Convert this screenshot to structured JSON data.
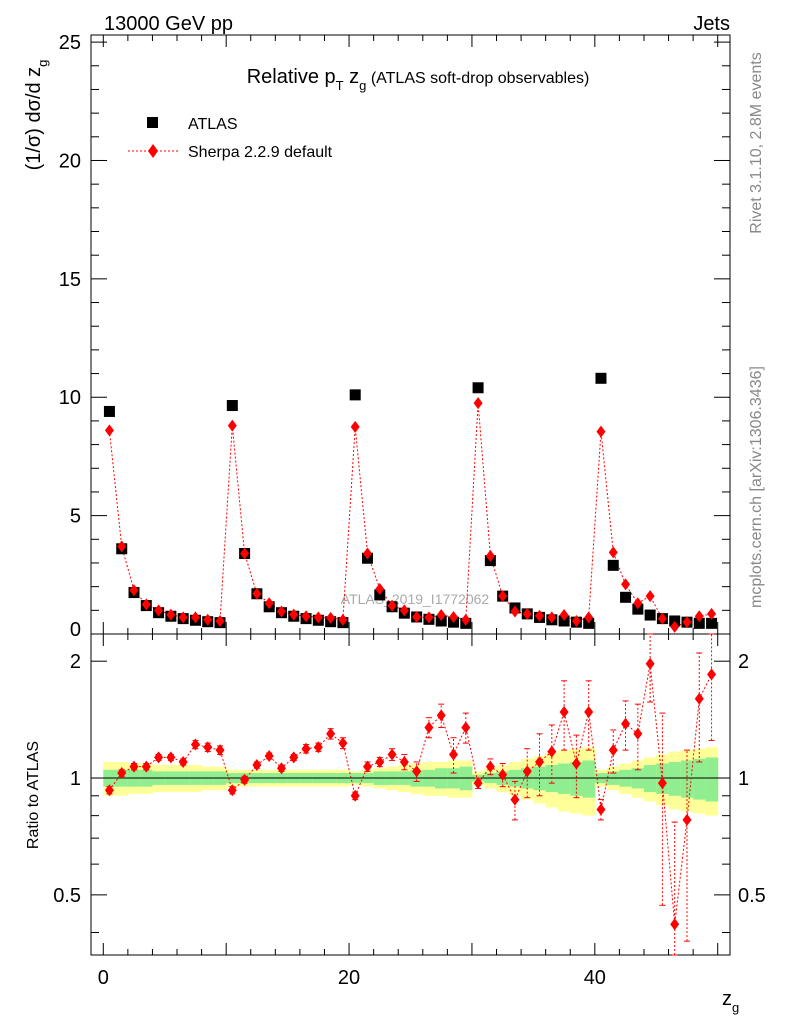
{
  "header": {
    "left": "13000 GeV pp",
    "right": "Jets"
  },
  "side_labels": {
    "rivet": "Rivet 3.1.10,  2.8M events",
    "mcplots": "mcplots.cern.ch [arXiv:1306.3436]"
  },
  "watermark": "ATLAS_2019_I1772062",
  "chart_data": {
    "type": "scatter",
    "title": {
      "main": "Relative p",
      "sub_T": "T",
      "z": " z",
      "sub_g": "g",
      "rest": " (ATLAS soft-drop observables)"
    },
    "xlabel": {
      "main": "z",
      "sub": "g"
    },
    "ylabel_top": "(1/σ) dσ/d z",
    "ylabel_top_sub": "g",
    "ylabel_bottom": "Ratio to ATLAS",
    "xlim": [
      -1,
      51
    ],
    "ylim_top": [
      0,
      25.3
    ],
    "ylim_bottom": [
      0.35,
      2.35
    ],
    "x_ticks": [
      "0",
      "20",
      "40"
    ],
    "y_ticks_top": [
      "0",
      "5",
      "10",
      "15",
      "20",
      "25"
    ],
    "y_ticks_bottom": [
      "0.5",
      "1",
      "2"
    ],
    "legend": {
      "position": "top-left",
      "atlas": "ATLAS",
      "sherpa": "Sherpa 2.2.9 default"
    },
    "colors": {
      "atlas": "#000000",
      "sherpa": "#ff0000",
      "band_inner": "#90ee90",
      "band_outer": "#ffff99"
    },
    "x": [
      0.5,
      1.5,
      2.5,
      3.5,
      4.5,
      5.5,
      6.5,
      7.5,
      8.5,
      9.5,
      10.5,
      11.5,
      12.5,
      13.5,
      14.5,
      15.5,
      16.5,
      17.5,
      18.5,
      19.5,
      20.5,
      21.5,
      22.5,
      23.5,
      24.5,
      25.5,
      26.5,
      27.5,
      28.5,
      29.5,
      30.5,
      31.5,
      32.5,
      33.5,
      34.5,
      35.5,
      36.5,
      37.5,
      38.5,
      39.5,
      40.5,
      41.5,
      42.5,
      43.5,
      44.5,
      45.5,
      46.5,
      47.5,
      48.5,
      49.5
    ],
    "atlas": [
      9.4,
      3.6,
      1.75,
      1.2,
      0.9,
      0.75,
      0.65,
      0.58,
      0.52,
      0.48,
      9.65,
      3.4,
      1.7,
      1.15,
      0.9,
      0.75,
      0.65,
      0.58,
      0.52,
      0.48,
      10.1,
      3.2,
      1.65,
      1.15,
      0.88,
      0.72,
      0.62,
      0.55,
      0.5,
      0.45,
      10.4,
      3.1,
      1.6,
      1.1,
      0.85,
      0.7,
      0.6,
      0.55,
      0.5,
      0.45,
      10.8,
      2.9,
      1.55,
      1.05,
      0.8,
      0.65,
      0.55,
      0.5,
      0.45,
      0.45
    ],
    "sherpa": [
      8.6,
      3.7,
      1.85,
      1.25,
      1.0,
      0.82,
      0.7,
      0.7,
      0.6,
      0.55,
      8.8,
      3.4,
      1.7,
      1.3,
      0.95,
      0.82,
      0.75,
      0.7,
      0.68,
      0.6,
      8.75,
      3.4,
      1.9,
      1.2,
      1.0,
      0.72,
      0.7,
      0.8,
      0.72,
      0.6,
      9.75,
      3.3,
      1.6,
      0.95,
      0.85,
      0.77,
      0.7,
      0.8,
      0.55,
      0.7,
      8.55,
      3.45,
      2.1,
      1.3,
      1.6,
      0.65,
      0.3,
      0.5,
      0.75,
      0.85
    ],
    "ratio": [
      0.93,
      1.03,
      1.07,
      1.07,
      1.13,
      1.13,
      1.1,
      1.22,
      1.2,
      1.18,
      0.93,
      0.99,
      1.08,
      1.14,
      1.06,
      1.13,
      1.19,
      1.2,
      1.3,
      1.23,
      0.9,
      1.07,
      1.1,
      1.15,
      1.1,
      1.04,
      1.35,
      1.45,
      1.15,
      1.35,
      0.97,
      1.07,
      1.02,
      0.88,
      1.04,
      1.1,
      1.17,
      1.48,
      1.09,
      1.48,
      0.83,
      1.18,
      1.38,
      1.3,
      1.97,
      0.97,
      0.42,
      0.78,
      1.6,
      1.85
    ],
    "ratio_err": [
      0.02,
      0.02,
      0.02,
      0.02,
      0.02,
      0.02,
      0.02,
      0.03,
      0.03,
      0.03,
      0.02,
      0.02,
      0.02,
      0.02,
      0.02,
      0.02,
      0.03,
      0.03,
      0.04,
      0.04,
      0.02,
      0.03,
      0.03,
      0.04,
      0.05,
      0.06,
      0.08,
      0.1,
      0.12,
      0.12,
      0.03,
      0.05,
      0.07,
      0.1,
      0.15,
      0.2,
      0.2,
      0.3,
      0.2,
      0.3,
      0.05,
      0.15,
      0.2,
      0.25,
      0.4,
      0.5,
      0.35,
      0.4,
      0.5,
      0.6
    ],
    "band_inner": [
      0.05,
      0.05,
      0.05,
      0.05,
      0.04,
      0.04,
      0.04,
      0.04,
      0.04,
      0.04,
      0.03,
      0.03,
      0.03,
      0.03,
      0.03,
      0.03,
      0.03,
      0.03,
      0.03,
      0.03,
      0.03,
      0.03,
      0.04,
      0.04,
      0.04,
      0.05,
      0.05,
      0.06,
      0.06,
      0.07,
      0.02,
      0.03,
      0.04,
      0.05,
      0.06,
      0.07,
      0.08,
      0.09,
      0.1,
      0.11,
      0.03,
      0.04,
      0.05,
      0.06,
      0.08,
      0.09,
      0.1,
      0.11,
      0.12,
      0.13
    ],
    "band_outer": [
      0.1,
      0.1,
      0.09,
      0.09,
      0.08,
      0.08,
      0.08,
      0.08,
      0.07,
      0.07,
      0.05,
      0.05,
      0.05,
      0.05,
      0.05,
      0.05,
      0.05,
      0.05,
      0.05,
      0.05,
      0.04,
      0.05,
      0.06,
      0.07,
      0.08,
      0.09,
      0.1,
      0.1,
      0.11,
      0.11,
      0.04,
      0.06,
      0.08,
      0.1,
      0.12,
      0.14,
      0.16,
      0.18,
      0.19,
      0.2,
      0.05,
      0.07,
      0.09,
      0.11,
      0.13,
      0.15,
      0.17,
      0.18,
      0.19,
      0.2
    ]
  }
}
